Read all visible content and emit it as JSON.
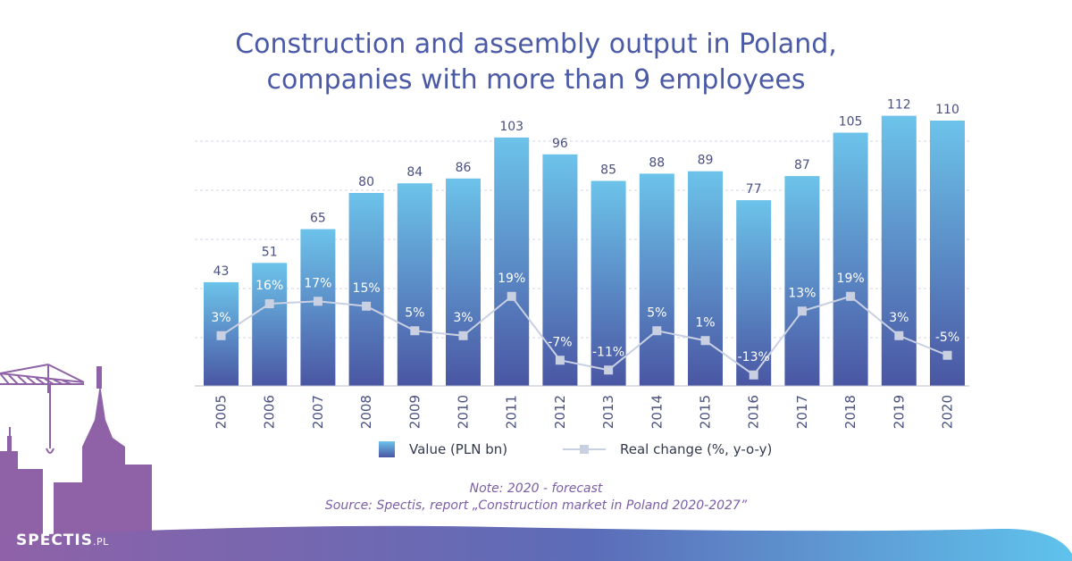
{
  "title_lines": [
    "Construction and assembly output in Poland,",
    "companies with more than 9 employees"
  ],
  "chart_data": {
    "type": "bar",
    "categories": [
      "2005",
      "2006",
      "2007",
      "2008",
      "2009",
      "2010",
      "2011",
      "2012",
      "2013",
      "2014",
      "2015",
      "2016",
      "2017",
      "2018",
      "2019",
      "2020"
    ],
    "series": [
      {
        "name": "Value (PLN bn)",
        "type": "bar",
        "values": [
          43,
          51,
          65,
          80,
          84,
          86,
          103,
          96,
          85,
          88,
          89,
          77,
          87,
          105,
          112,
          110
        ],
        "labels": [
          "43",
          "51",
          "65",
          "80",
          "84",
          "86",
          "103",
          "96",
          "85",
          "88",
          "89",
          "77",
          "87",
          "105",
          "112",
          "110"
        ]
      },
      {
        "name": "Real change (%, y-o-y)",
        "type": "line",
        "values": [
          3,
          16,
          17,
          15,
          5,
          3,
          19,
          -7,
          -11,
          5,
          1,
          -13,
          13,
          19,
          3,
          -5
        ],
        "labels": [
          "3%",
          "16%",
          "17%",
          "15%",
          "5%",
          "3%",
          "19%",
          "-7%",
          "-11%",
          "5%",
          "1%",
          "-13%",
          "13%",
          "19%",
          "3%",
          "-5%"
        ]
      }
    ],
    "grid": true,
    "legend": "bottom"
  },
  "legend": {
    "bar_label": "Value (PLN bn)",
    "line_label": "Real change (%, y-o-y)"
  },
  "notes": {
    "note": "Note: 2020 - forecast",
    "source": "Source: Spectis, report „Construction market in Poland 2020-2027”"
  },
  "brand": {
    "name": "SPECTIS",
    "suffix": ".PL"
  },
  "colors": {
    "bar_top": "#6cc3ea",
    "bar_bottom": "#4a56a3",
    "line": "#c9d0e2",
    "title": "#4a5aa6",
    "text": "#4a5080",
    "note": "#7b5ea6",
    "footer_purple": "#8f62a8",
    "footer_blue": "#5fc3ec"
  }
}
